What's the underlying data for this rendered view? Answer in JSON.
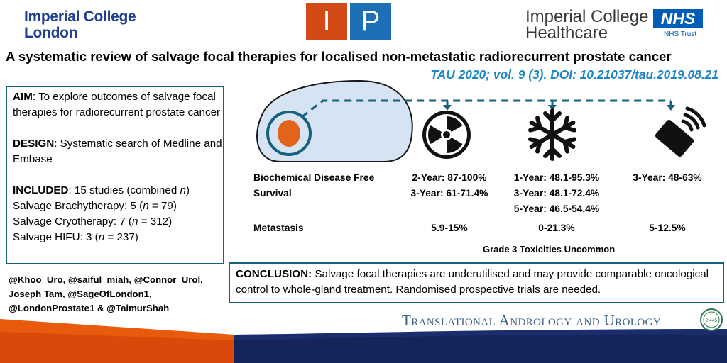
{
  "logos": {
    "imperial_line1": "Imperial College",
    "imperial_line2": "London",
    "ip_left": "I",
    "ip_right": "P",
    "ich_line1": "Imperial College",
    "ich_line2": "Healthcare",
    "nhs": "NHS",
    "nhs_trust": "NHS Trust"
  },
  "title": "A systematic review of salvage focal therapies for  localised non-metastatic radiorecurrent prostate cancer",
  "citation": "TAU 2020; vol. 9 (3). DOI: 10.21037/tau.2019.08.21",
  "left_box": {
    "aim_label": "AIM",
    "aim_text": ": To explore outcomes of salvage focal therapies for radiorecurrent prostate cancer",
    "design_label": "DESIGN",
    "design_text": ": Systematic search of Medline and Embase",
    "included_label": "INCLUDED",
    "included_text": ": 15 studies (combined ",
    "included_n": "n",
    "included_close": ")",
    "items": [
      {
        "label": "Salvage Brachytherapy: 5 (",
        "n": "n",
        "value": " = 79)"
      },
      {
        "label": "Salvage Cryotherapy: 7 (",
        "n": "n",
        "value": " = 312)"
      },
      {
        "label": "Salvage HIFU: 3 (",
        "n": "n",
        "value": " = 237)"
      }
    ]
  },
  "handles": [
    "@Khoo_Uro, @saiful_miah, @Connor_Urol,",
    "Joseph Tam, @SageOfLondon1,",
    "@LondonProstate1 & @TaimurShah"
  ],
  "outcomes": {
    "bdfs_label_1": "Biochemical  Disease Free",
    "bdfs_label_2": "Survival",
    "metastasis_label": "Metastasis",
    "brachy_bdfs": [
      "2-Year: 87-100%",
      "3-Year: 61-71.4%"
    ],
    "cryo_bdfs": [
      "1-Year: 48.1-95.3%",
      "3-Year: 48.1-72.4%",
      "5-Year: 46.5-54.4%"
    ],
    "hifu_bdfs": [
      "3-Year: 48-63%"
    ],
    "brachy_met": "5.9-15%",
    "cryo_met": "0-21.3%",
    "hifu_met": "5-12.5%",
    "grade3": "Grade 3 Toxicities Uncommon"
  },
  "conclusion": {
    "label": "CONCLUSION:",
    "text": " Salvage focal therapies are underutilised and may provide comparable oncological control to whole-gland treatment. Randomised prospective trials are needed."
  },
  "footer": {
    "journal": "Translational Andrology and Urology",
    "badge_text": "2.445"
  },
  "icons": [
    "radiation-icon",
    "snowflake-icon",
    "ultrasound-probe-icon",
    "prostate-icon"
  ],
  "colors": {
    "navy": "#1f3f8f",
    "ip_orange": "#d24a15",
    "ip_blue": "#1d6fb6",
    "nhs_blue": "#005eb8",
    "citation_blue": "#1d86c7",
    "box_border": "#17607e",
    "tumour_orange": "#e0651b",
    "gland_fill": "#d6e3f2"
  }
}
